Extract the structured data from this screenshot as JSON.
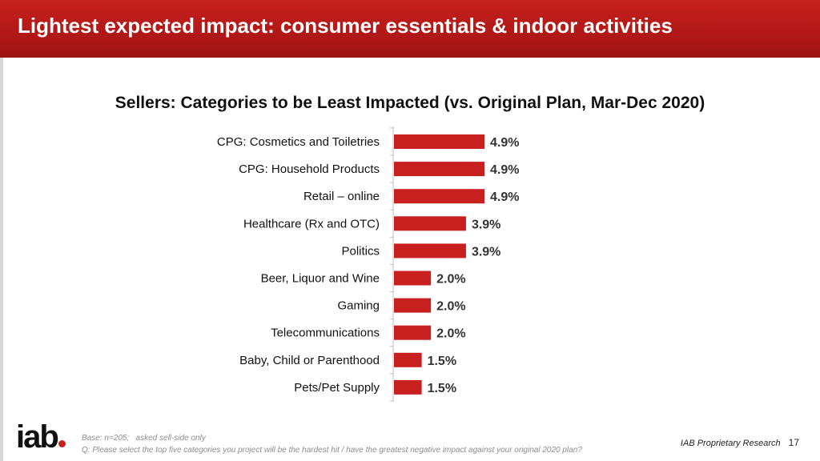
{
  "header": {
    "title": "Lightest expected impact: consumer essentials & indoor activities"
  },
  "chart_data": {
    "type": "bar",
    "orientation": "horizontal",
    "title": "Sellers: Categories to be Least Impacted (vs. Original Plan, Mar-Dec 2020)",
    "categories": [
      "CPG: Cosmetics and Toiletries",
      "CPG: Household Products",
      "Retail – online",
      "Healthcare (Rx and OTC)",
      "Politics",
      "Beer, Liquor and Wine",
      "Gaming",
      "Telecommunications",
      "Baby, Child or Parenthood",
      "Pets/Pet Supply"
    ],
    "values": [
      4.9,
      4.9,
      4.9,
      3.9,
      3.9,
      2.0,
      2.0,
      2.0,
      1.5,
      1.5
    ],
    "value_labels": [
      "4.9%",
      "4.9%",
      "4.9%",
      "3.9%",
      "3.9%",
      "2.0%",
      "2.0%",
      "2.0%",
      "1.5%",
      "1.5%"
    ],
    "xlim": [
      0,
      4.9
    ],
    "bar_color": "#c8201e",
    "grid": false,
    "legend": "none"
  },
  "footer": {
    "logo": "iab.",
    "base_note": "Base: n=205;   asked sell-side only",
    "question": "Q: Please select the top five categories you project will be the hardest hit / have the greatest negative impact against your original 2020 plan?",
    "source": "IAB Proprietary Research",
    "page_number": "17"
  },
  "colors": {
    "brand_red": "#c8201e",
    "header_red": "#b01816"
  }
}
